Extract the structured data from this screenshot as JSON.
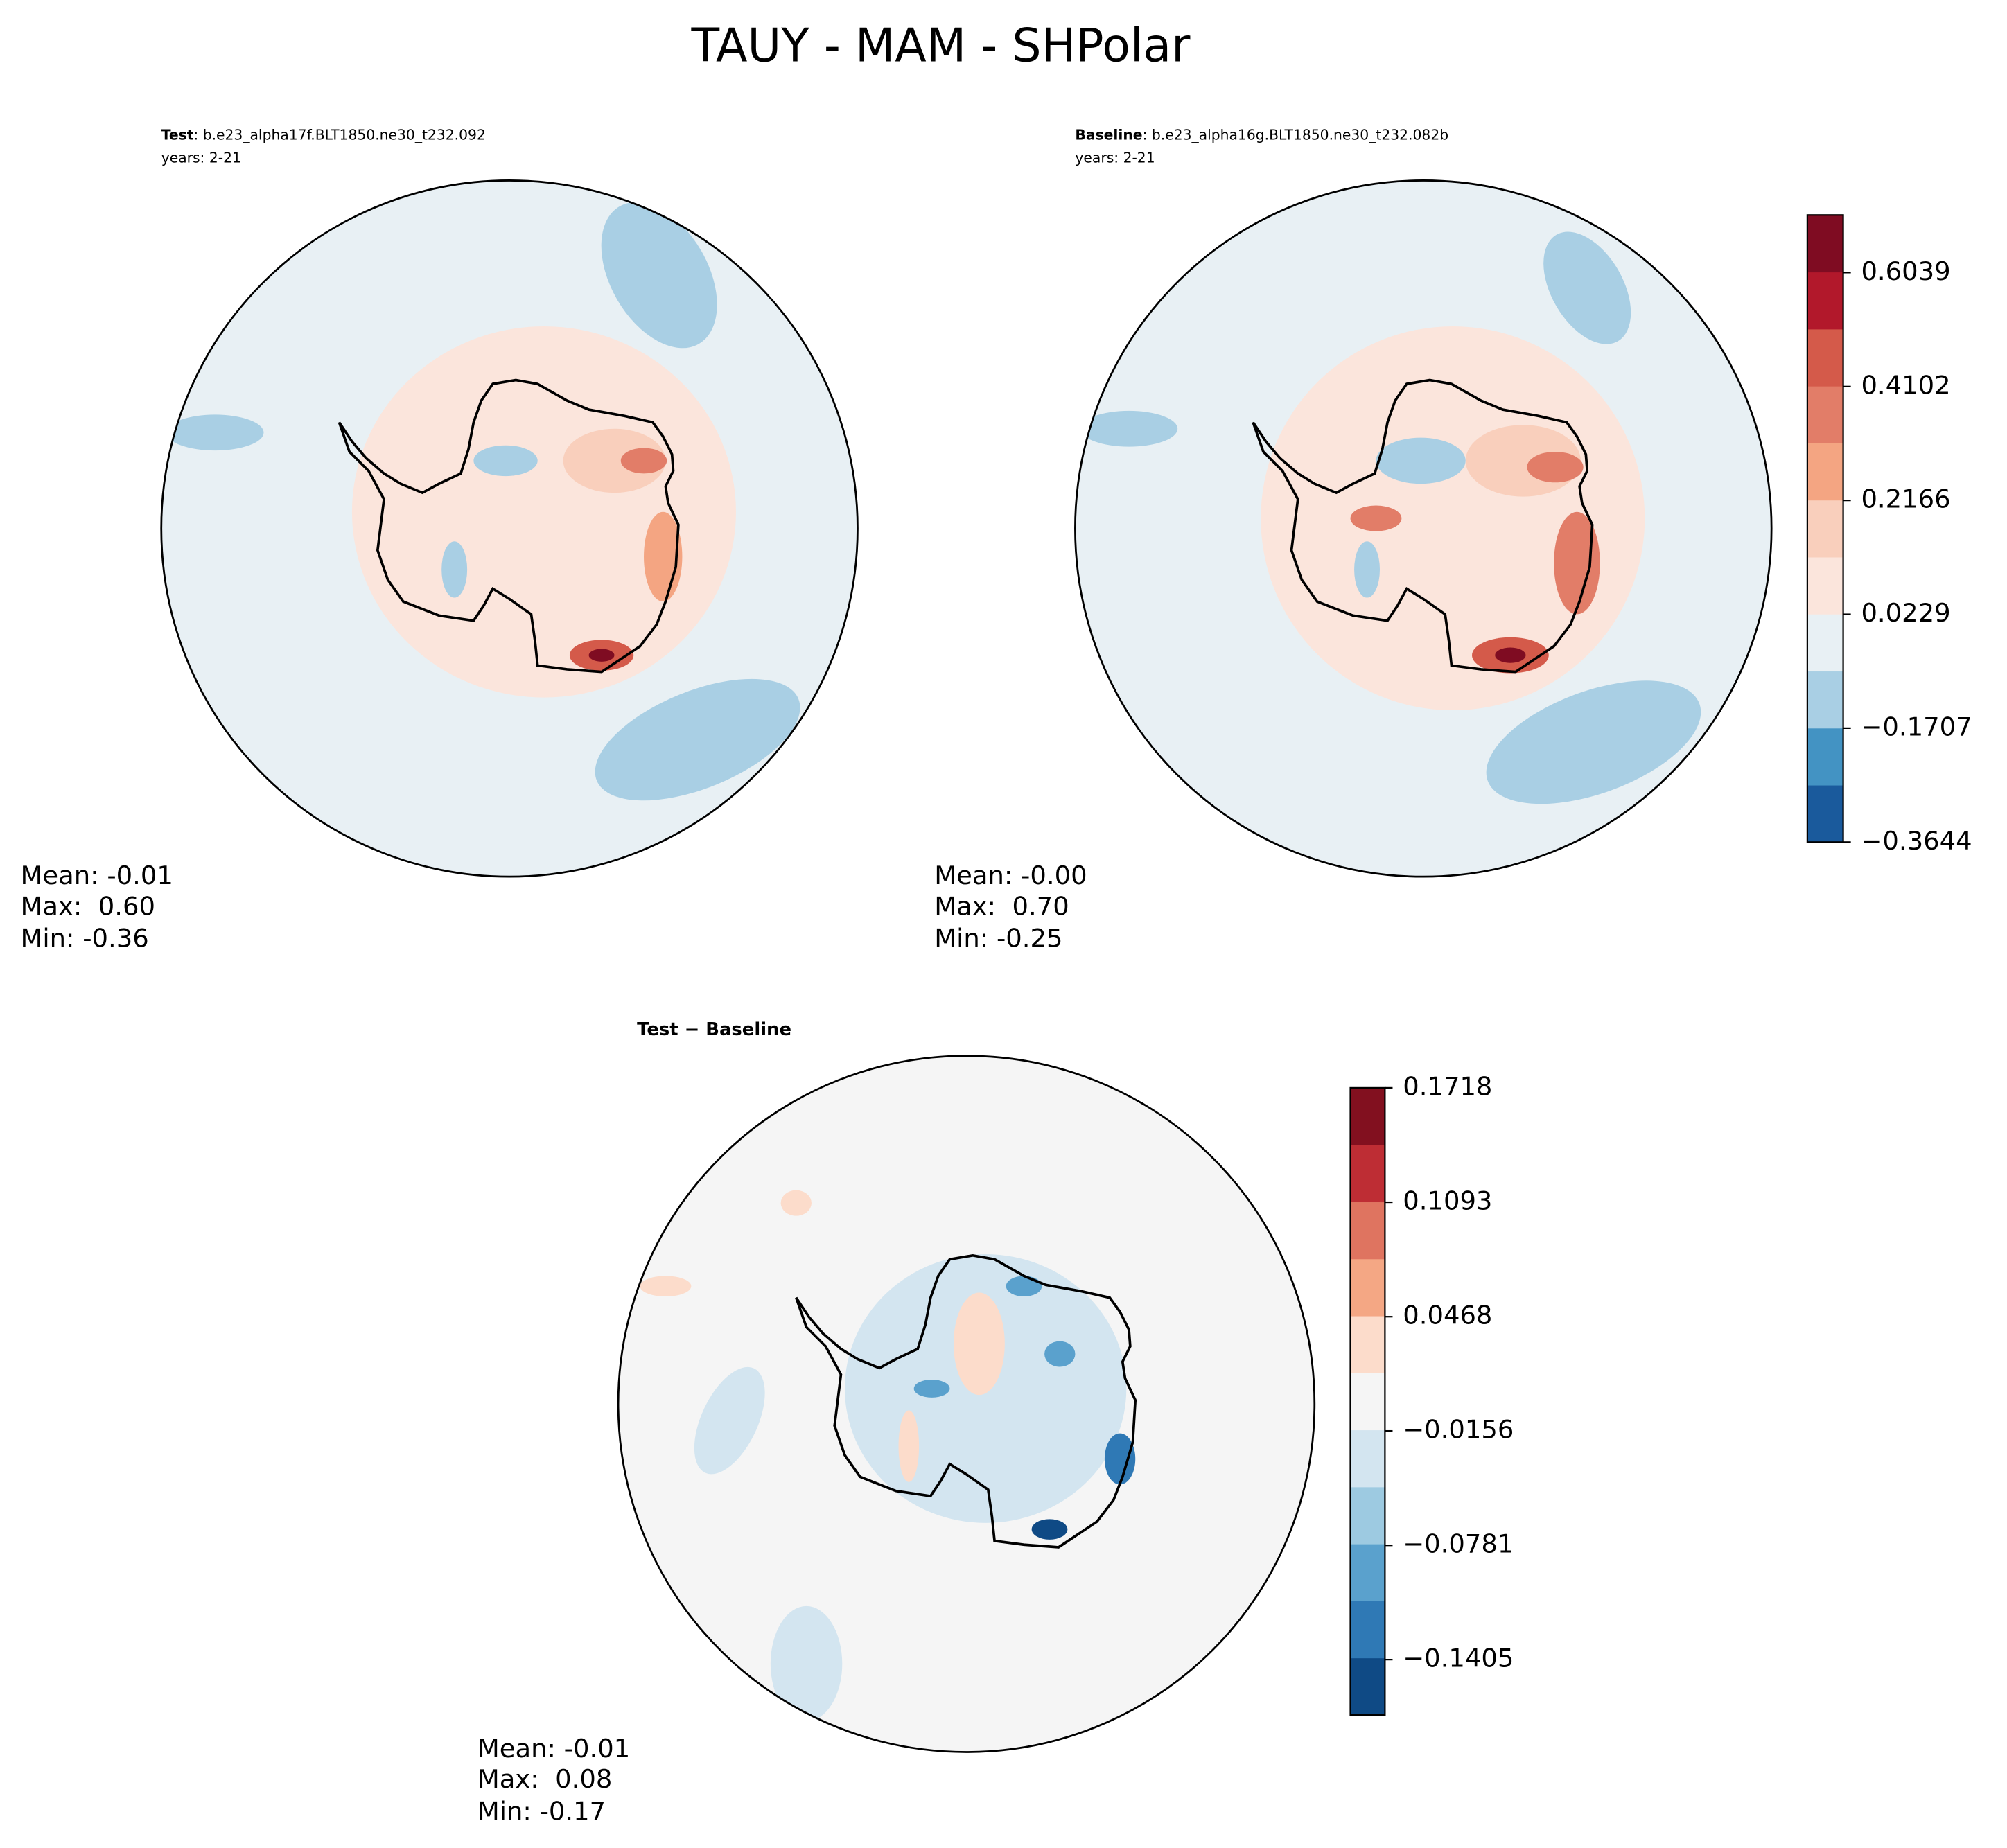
{
  "title": "TAUY - MAM - SHPolar",
  "chart_data": [
    {
      "type": "contour",
      "title": "Test",
      "subtitle": ": b.e23_alpha17f.BLT1850.ne30_t232.092",
      "note": "years: 2-21",
      "stats": [
        "Mean: -0.01",
        "Max:  0.60",
        "Min: -0.36"
      ]
    },
    {
      "type": "contour",
      "title": "Baseline",
      "subtitle": ": b.e23_alpha16g.BLT1850.ne30_t232.082b",
      "note": "years: 2-21",
      "stats": [
        "Mean: -0.00",
        "Max:  0.70",
        "Min: -0.25"
      ],
      "ylim": [
        -0.3644,
        0.7018
      ],
      "yticks": [
        {
          "value": -0.3644,
          "label": "−0.3644"
        },
        {
          "value": -0.1707,
          "label": "−0.1707"
        },
        0.0229,
        0.2166,
        0.4102,
        0.6039
      ],
      "colors": [
        "#1a5a9c",
        "#4393c3",
        "#a9cfe4",
        "#e8f0f4",
        "#fbe5dc",
        "#f9cfbc",
        "#f4a582",
        "#e27d68",
        "#d45a4a",
        "#b2182b",
        "#7f0c22"
      ]
    },
    {
      "type": "contour",
      "title": "Test − Baseline",
      "stats": [
        "Mean: -0.01",
        "Max:  0.08",
        "Min: -0.17"
      ],
      "ylim": [
        -0.1707,
        0.1718
      ],
      "yticks": [
        {
          "value": -0.1405,
          "label": "−0.1405"
        },
        {
          "value": -0.0781,
          "label": "−0.0781"
        },
        {
          "value": -0.0156,
          "label": "−0.0156"
        },
        0.0468,
        0.1093,
        0.1718
      ],
      "colors": [
        "#0f4a85",
        "#2f79b5",
        "#5aa1cd",
        "#9dcae1",
        "#d3e5f0",
        "#f5f5f5",
        "#fcdccb",
        "#f4a784",
        "#df7460",
        "#be2d34",
        "#82101f"
      ]
    }
  ]
}
